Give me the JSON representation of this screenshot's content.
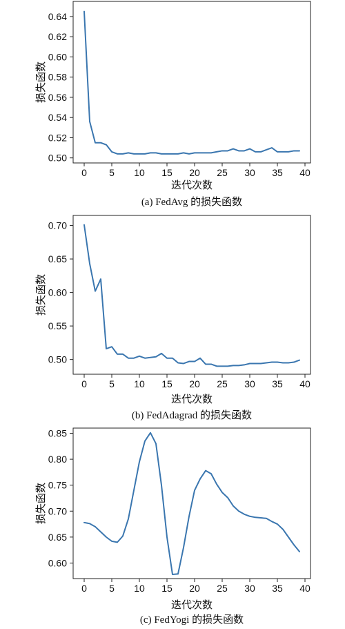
{
  "line_color": "#3a76af",
  "chart_data": [
    {
      "type": "line",
      "caption": "(a) FedAvg 的损失函数",
      "xlabel": "迭代次数",
      "ylabel": "损失函数",
      "xlim": [
        -2,
        41
      ],
      "ylim": [
        0.495,
        0.655
      ],
      "xticks": [
        0,
        5,
        10,
        15,
        20,
        25,
        30,
        35,
        40
      ],
      "yticks": [
        0.5,
        0.52,
        0.54,
        0.56,
        0.58,
        0.6,
        0.62,
        0.64
      ],
      "ytick_decimals": 2,
      "x": [
        0,
        1,
        2,
        3,
        4,
        5,
        6,
        7,
        8,
        9,
        10,
        11,
        12,
        13,
        14,
        15,
        16,
        17,
        18,
        19,
        20,
        21,
        22,
        23,
        24,
        25,
        26,
        27,
        28,
        29,
        30,
        31,
        32,
        33,
        34,
        35,
        36,
        37,
        38,
        39
      ],
      "series": [
        {
          "values": [
            0.645,
            0.536,
            0.515,
            0.515,
            0.513,
            0.506,
            0.504,
            0.504,
            0.505,
            0.504,
            0.504,
            0.504,
            0.505,
            0.505,
            0.504,
            0.504,
            0.504,
            0.504,
            0.505,
            0.504,
            0.505,
            0.505,
            0.505,
            0.505,
            0.506,
            0.507,
            0.507,
            0.509,
            0.507,
            0.507,
            0.509,
            0.506,
            0.506,
            0.508,
            0.51,
            0.506,
            0.506,
            0.506,
            0.507,
            0.507
          ]
        }
      ]
    },
    {
      "type": "line",
      "caption": "(b) FedAdagrad 的损失函数",
      "xlabel": "迭代次数",
      "ylabel": "损失函数",
      "xlim": [
        -2,
        41
      ],
      "ylim": [
        0.478,
        0.715
      ],
      "xticks": [
        0,
        5,
        10,
        15,
        20,
        25,
        30,
        35,
        40
      ],
      "yticks": [
        0.5,
        0.55,
        0.6,
        0.65,
        0.7
      ],
      "ytick_decimals": 2,
      "x": [
        0,
        1,
        2,
        3,
        4,
        5,
        6,
        7,
        8,
        9,
        10,
        11,
        12,
        13,
        14,
        15,
        16,
        17,
        18,
        19,
        20,
        21,
        22,
        23,
        24,
        25,
        26,
        27,
        28,
        29,
        30,
        31,
        32,
        33,
        34,
        35,
        36,
        37,
        38,
        39
      ],
      "series": [
        {
          "values": [
            0.701,
            0.643,
            0.602,
            0.62,
            0.516,
            0.519,
            0.508,
            0.508,
            0.502,
            0.502,
            0.505,
            0.502,
            0.503,
            0.504,
            0.509,
            0.502,
            0.502,
            0.495,
            0.494,
            0.497,
            0.497,
            0.502,
            0.493,
            0.493,
            0.49,
            0.49,
            0.49,
            0.491,
            0.491,
            0.492,
            0.494,
            0.494,
            0.494,
            0.495,
            0.496,
            0.496,
            0.495,
            0.495,
            0.496,
            0.499
          ]
        }
      ]
    },
    {
      "type": "line",
      "caption": "(c) FedYogi 的损失函数",
      "xlabel": "迭代次数",
      "ylabel": "损失函数",
      "xlim": [
        -2,
        41
      ],
      "ylim": [
        0.57,
        0.86
      ],
      "xticks": [
        0,
        5,
        10,
        15,
        20,
        25,
        30,
        35,
        40
      ],
      "yticks": [
        0.6,
        0.65,
        0.7,
        0.75,
        0.8,
        0.85
      ],
      "ytick_decimals": 2,
      "x": [
        0,
        1,
        2,
        3,
        4,
        5,
        6,
        7,
        8,
        9,
        10,
        11,
        12,
        13,
        14,
        15,
        16,
        17,
        18,
        19,
        20,
        21,
        22,
        23,
        24,
        25,
        26,
        27,
        28,
        29,
        30,
        31,
        32,
        33,
        34,
        35,
        36,
        37,
        38,
        39
      ],
      "series": [
        {
          "values": [
            0.678,
            0.676,
            0.67,
            0.66,
            0.65,
            0.642,
            0.64,
            0.652,
            0.685,
            0.74,
            0.795,
            0.835,
            0.851,
            0.83,
            0.75,
            0.65,
            0.578,
            0.579,
            0.63,
            0.69,
            0.74,
            0.762,
            0.778,
            0.772,
            0.752,
            0.736,
            0.726,
            0.71,
            0.7,
            0.694,
            0.69,
            0.688,
            0.687,
            0.686,
            0.68,
            0.675,
            0.665,
            0.65,
            0.635,
            0.622
          ]
        }
      ]
    }
  ]
}
